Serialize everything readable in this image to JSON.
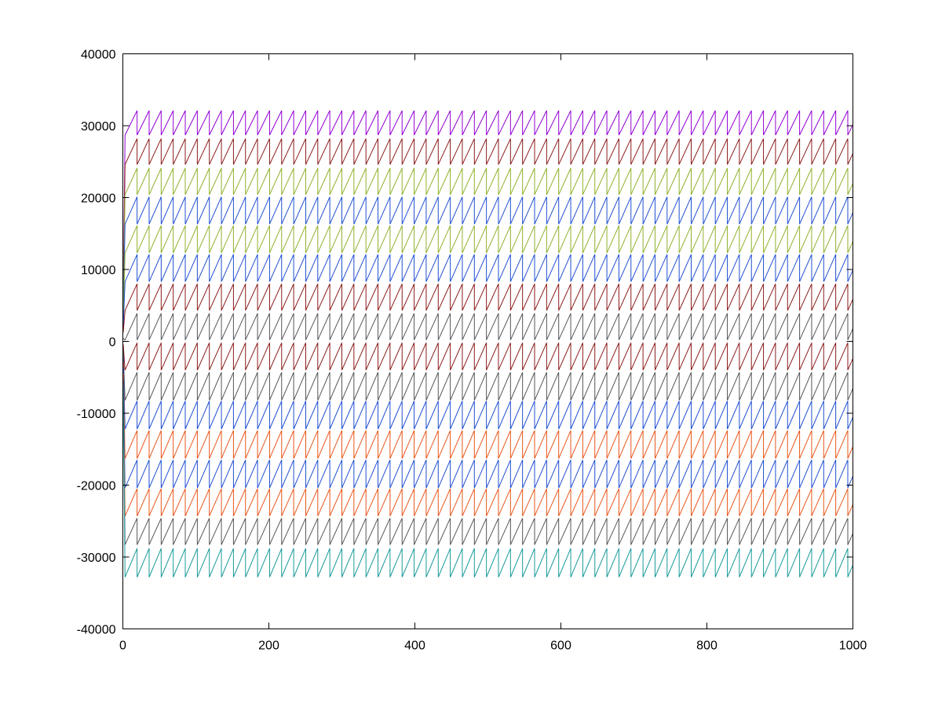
{
  "chart_data": {
    "type": "line",
    "title": "",
    "xlabel": "",
    "ylabel": "",
    "xlim": [
      0,
      1000
    ],
    "ylim": [
      -40000,
      40000
    ],
    "grid": false,
    "legend": "none",
    "xticks": [
      0,
      200,
      400,
      600,
      800,
      1000
    ],
    "xtick_labels": [
      "0",
      "200",
      "400",
      "600",
      "800",
      "1000"
    ],
    "yticks": [
      -40000,
      -30000,
      -20000,
      -10000,
      0,
      10000,
      20000,
      30000,
      40000
    ],
    "ytick_labels": [
      "-40000",
      "-30000",
      "-20000",
      "-10000",
      "0",
      "10000",
      "20000",
      "30000",
      "40000"
    ],
    "pattern": {
      "kind": "sawtooth",
      "x_start": 3,
      "x_end": 1000,
      "period": 16.5,
      "amplitude": 3700
    },
    "series": [
      {
        "low": 28700,
        "high": 32100,
        "color": "#9400d3"
      },
      {
        "low": 24600,
        "high": 28200,
        "color": "#8b1a1a"
      },
      {
        "low": 20400,
        "high": 24100,
        "color": "#8fb02a"
      },
      {
        "low": 16300,
        "high": 20100,
        "color": "#1f4fd1"
      },
      {
        "low": 12300,
        "high": 16100,
        "color": "#8fb02a"
      },
      {
        "low": 8300,
        "high": 12100,
        "color": "#1f4fd1"
      },
      {
        "low": 4300,
        "high": 8000,
        "color": "#8b1a1a"
      },
      {
        "low": 200,
        "high": 3900,
        "color": "#555555"
      },
      {
        "low": -4000,
        "high": -200,
        "color": "#8b1a1a"
      },
      {
        "low": -8200,
        "high": -4300,
        "color": "#555555"
      },
      {
        "low": -12200,
        "high": -8300,
        "color": "#1f4fd1"
      },
      {
        "low": -16300,
        "high": -12400,
        "color": "#e8561a"
      },
      {
        "low": -20400,
        "high": -16500,
        "color": "#1f4fd1"
      },
      {
        "low": -24300,
        "high": -20500,
        "color": "#e8561a"
      },
      {
        "low": -28300,
        "high": -24600,
        "color": "#555555"
      },
      {
        "low": -32800,
        "high": -28800,
        "color": "#1a9a9a"
      }
    ]
  }
}
